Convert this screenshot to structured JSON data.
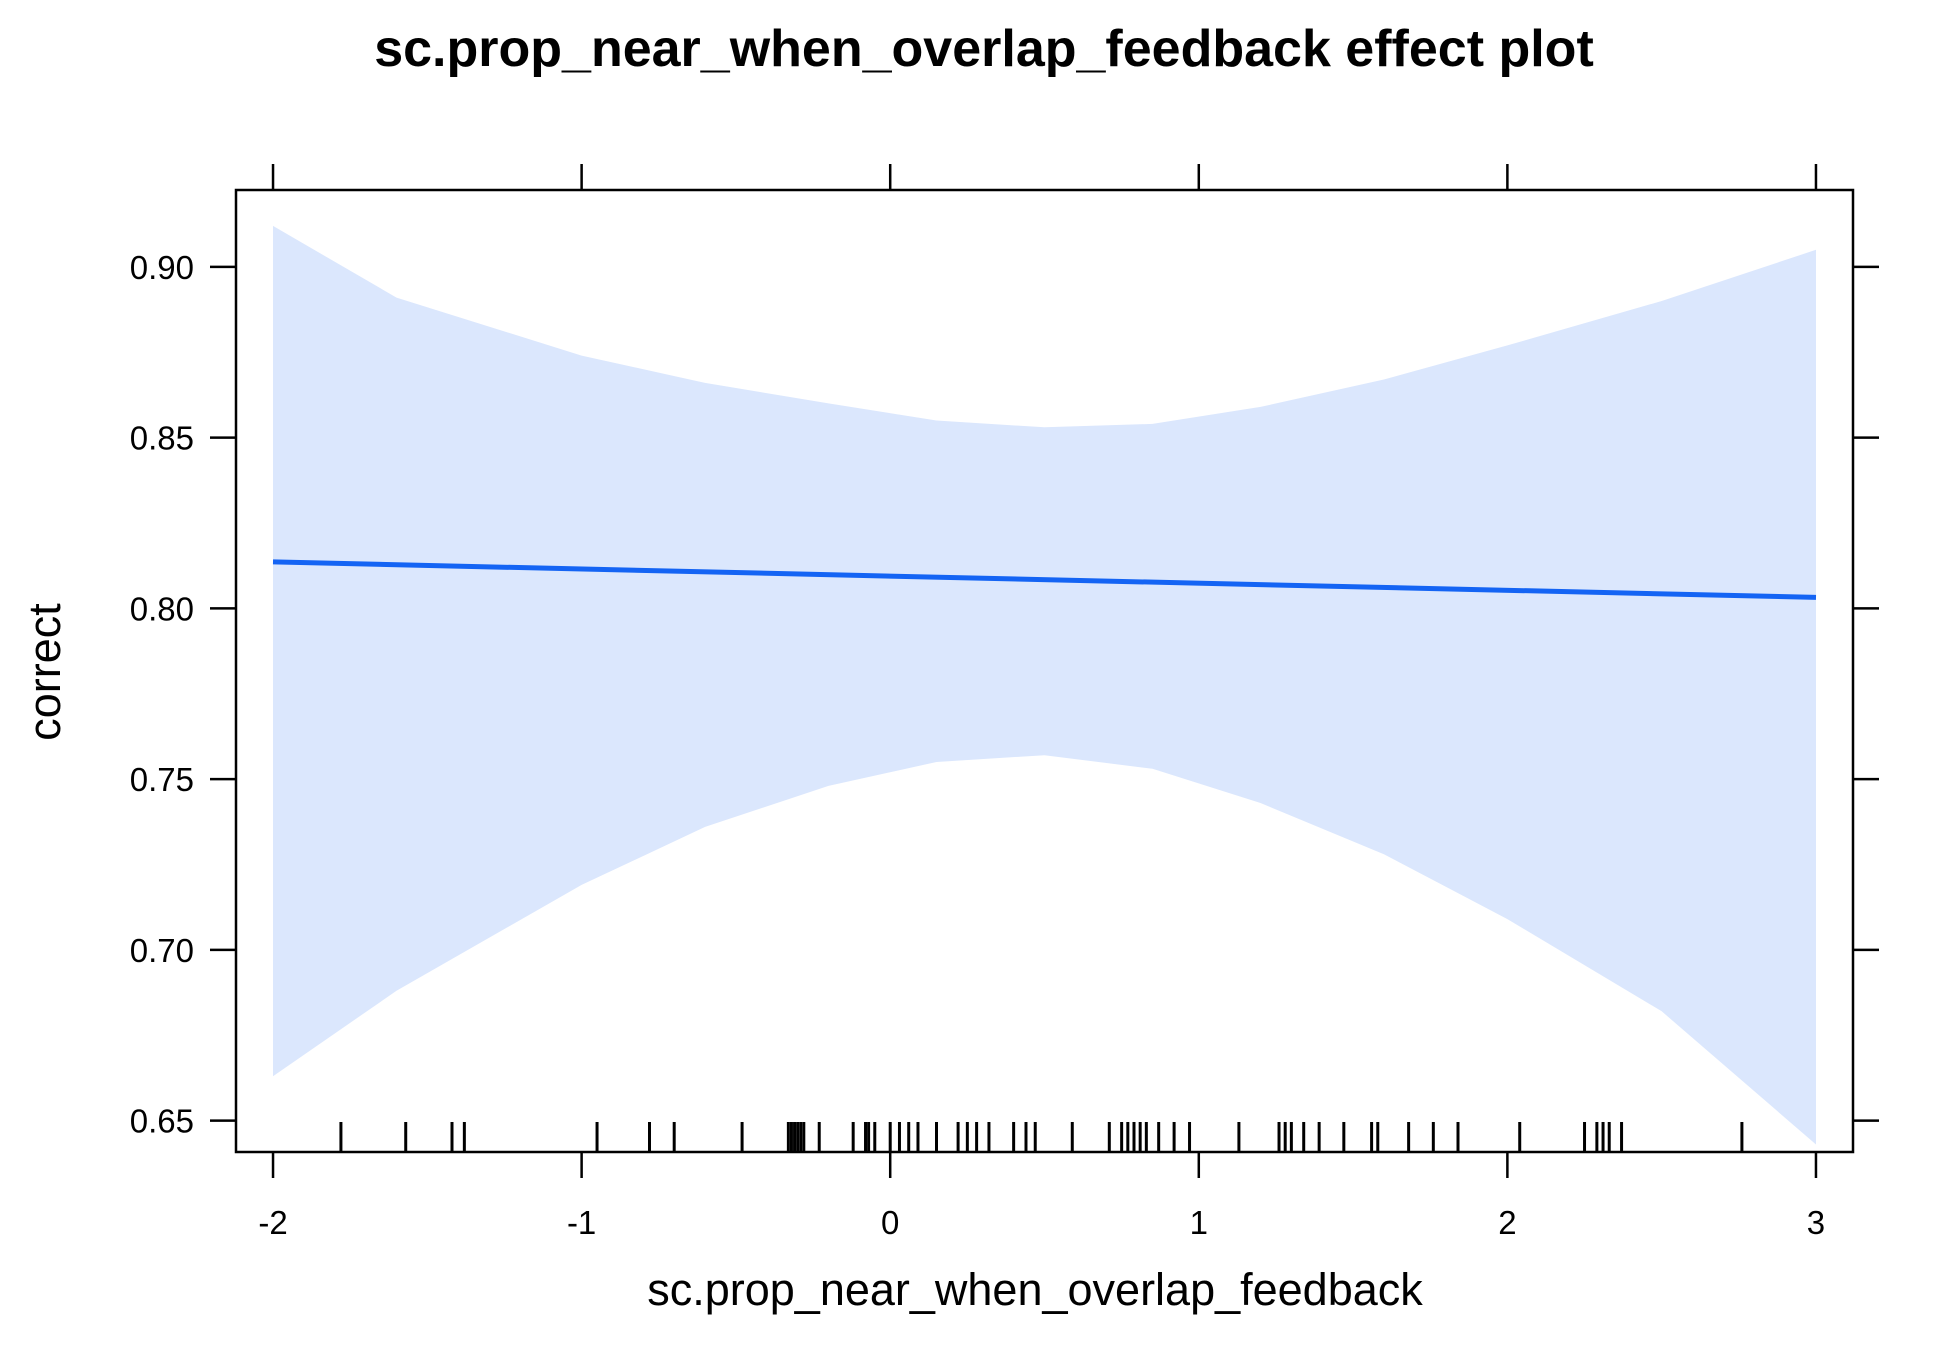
{
  "chart_data": {
    "type": "line",
    "title": "sc.prop_near_when_overlap_feedback effect plot",
    "xlabel": "sc.prop_near_when_overlap_feedback",
    "ylabel": "correct",
    "xlim": [
      -2.12,
      3.12
    ],
    "ylim": [
      0.6408,
      0.9225
    ],
    "x_ticks": [
      -2,
      -1,
      0,
      1,
      2,
      3
    ],
    "x_tick_labels": [
      "-2",
      "-1",
      "0",
      "1",
      "2",
      "3"
    ],
    "y_ticks": [
      0.65,
      0.7,
      0.75,
      0.8,
      0.85,
      0.9
    ],
    "y_tick_labels": [
      "0.65",
      "0.70",
      "0.75",
      "0.80",
      "0.85",
      "0.90"
    ],
    "grid": false,
    "colors": {
      "line": "#1464f4",
      "band": "#dbe7fd",
      "axis": "#000000"
    },
    "series": [
      {
        "x": [
          -2,
          3
        ],
        "y": [
          0.8136,
          0.8032
        ]
      }
    ],
    "confidence_band": {
      "x": [
        -2.0,
        -1.6,
        -1.0,
        -0.6,
        -0.2,
        0.15,
        0.5,
        0.85,
        1.2,
        1.6,
        2.0,
        2.5,
        3.0
      ],
      "lower": [
        0.663,
        0.688,
        0.719,
        0.736,
        0.748,
        0.755,
        0.757,
        0.753,
        0.743,
        0.728,
        0.709,
        0.682,
        0.643
      ],
      "upper": [
        0.912,
        0.891,
        0.874,
        0.866,
        0.86,
        0.855,
        0.853,
        0.854,
        0.859,
        0.867,
        0.877,
        0.89,
        0.905
      ]
    },
    "rug": [
      -1.78,
      -1.57,
      -1.42,
      -1.38,
      -0.95,
      -0.78,
      -0.7,
      -0.48,
      -0.33,
      -0.32,
      -0.31,
      -0.3,
      -0.29,
      -0.28,
      -0.23,
      -0.12,
      -0.08,
      -0.07,
      -0.05,
      0.0,
      0.03,
      0.06,
      0.09,
      0.15,
      0.22,
      0.25,
      0.28,
      0.32,
      0.4,
      0.44,
      0.47,
      0.59,
      0.71,
      0.75,
      0.77,
      0.79,
      0.81,
      0.83,
      0.87,
      0.92,
      0.97,
      1.13,
      1.26,
      1.28,
      1.3,
      1.34,
      1.39,
      1.47,
      1.56,
      1.58,
      1.68,
      1.76,
      1.84,
      2.04,
      2.25,
      2.29,
      2.31,
      2.33,
      2.37,
      2.76
    ]
  }
}
